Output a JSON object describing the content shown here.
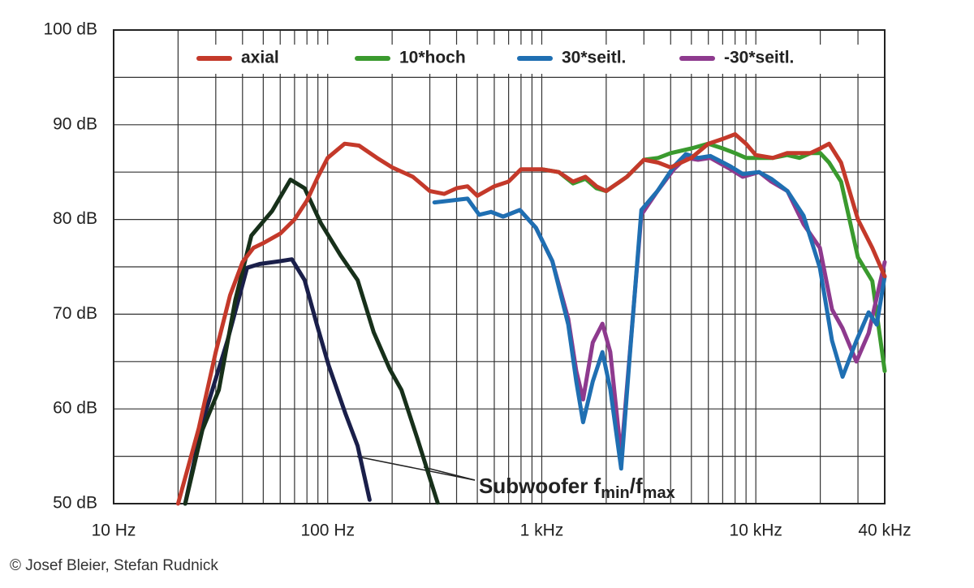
{
  "chart_data": {
    "type": "line",
    "xscale": "log",
    "xlim": [
      10,
      40000
    ],
    "ylim": [
      50,
      100
    ],
    "xticks": [
      {
        "value": 10,
        "label": "10 Hz"
      },
      {
        "value": 100,
        "label": "100 Hz"
      },
      {
        "value": 1000,
        "label": "1 kHz"
      },
      {
        "value": 10000,
        "label": "10 kHz"
      },
      {
        "value": 40000,
        "label": "40 kHz"
      }
    ],
    "yticks": [
      {
        "value": 50,
        "label": "50 dB"
      },
      {
        "value": 60,
        "label": "60 dB"
      },
      {
        "value": 70,
        "label": "70 dB"
      },
      {
        "value": 80,
        "label": "80 dB"
      },
      {
        "value": 90,
        "label": "90 dB"
      },
      {
        "value": 100,
        "label": "100 dB"
      }
    ],
    "x_minor_grid": [
      20,
      30,
      40,
      50,
      60,
      70,
      80,
      90,
      200,
      300,
      400,
      500,
      600,
      700,
      800,
      900,
      2000,
      3000,
      4000,
      5000,
      6000,
      7000,
      8000,
      9000,
      20000,
      30000
    ],
    "y_minor_grid": [
      55,
      65,
      75,
      85,
      95
    ],
    "grid": true,
    "series": [
      {
        "name": "axial",
        "color": "#c4392a",
        "x": [
          20,
          25,
          30,
          35,
          40,
          45,
          50,
          60,
          70,
          80,
          90,
          100,
          120,
          140,
          170,
          200,
          250,
          300,
          350,
          400,
          450,
          500,
          600,
          700,
          800,
          1000,
          1200,
          1400,
          1600,
          1800,
          2000,
          2500,
          3000,
          3500,
          4000,
          5000,
          6000,
          7000,
          8000,
          9000,
          10000,
          12000,
          14000,
          16000,
          18000,
          20000,
          22000,
          25000,
          30000,
          35000,
          40000
        ],
        "values": [
          50,
          58,
          66,
          72,
          75.5,
          77,
          77.5,
          78.5,
          80,
          82,
          84.5,
          86.5,
          88,
          87.8,
          86.5,
          85.5,
          84.5,
          83,
          82.7,
          83.3,
          83.5,
          82.5,
          83.5,
          84,
          85.3,
          85.3,
          85,
          84,
          84.5,
          83.5,
          83,
          84.5,
          86.3,
          86,
          85.5,
          86.5,
          88,
          88.5,
          89,
          88,
          86.8,
          86.5,
          87,
          87,
          87,
          87.5,
          88,
          86,
          80,
          77,
          74
        ]
      },
      {
        "name": "10*hoch",
        "color": "#3a9a2e",
        "x": [
          1000,
          1200,
          1400,
          1600,
          1800,
          2000,
          2500,
          3000,
          3500,
          4000,
          5000,
          6000,
          7000,
          8000,
          9000,
          10000,
          12000,
          14000,
          16000,
          18000,
          20000,
          22000,
          25000,
          30000,
          35000,
          40000
        ],
        "values": [
          85.3,
          85,
          83.8,
          84.3,
          83.3,
          83,
          84.5,
          86.3,
          86.5,
          87,
          87.5,
          88,
          87.5,
          87,
          86.5,
          86.5,
          86.5,
          86.8,
          86.5,
          87,
          87,
          86,
          84,
          76,
          73.5,
          64
        ]
      },
      {
        "name": "30*seitl.",
        "color": "#1f6fb2",
        "x": [
          315,
          450,
          510,
          580,
          660,
          790,
          940,
          1120,
          1330,
          1450,
          1560,
          1730,
          1920,
          2090,
          2350,
          2560,
          2920,
          3470,
          4140,
          4710,
          5370,
          6130,
          7620,
          8690,
          10350,
          11800,
          14060,
          16710,
          19910,
          22700,
          25420,
          29500,
          33650,
          36730,
          40000
        ],
        "values": [
          81.8,
          82.2,
          80.5,
          80.8,
          80.3,
          81,
          79.1,
          75.6,
          68.9,
          62.9,
          58.6,
          62.9,
          66,
          62.1,
          53.7,
          64.7,
          81,
          83,
          85.6,
          86.9,
          86.5,
          86.7,
          85.6,
          84.8,
          85,
          84.3,
          83,
          80.4,
          74.9,
          67.2,
          63.4,
          67.2,
          70.2,
          68.9,
          74
        ]
      },
      {
        "name": "-30*seitl.",
        "color": "#8e3a8e",
        "x": [
          580,
          660,
          790,
          940,
          1120,
          1330,
          1450,
          1560,
          1730,
          1920,
          2090,
          2350,
          2560,
          2920,
          3470,
          4140,
          4710,
          5370,
          6130,
          7620,
          8690,
          10350,
          11800,
          14060,
          16710,
          19910,
          22700,
          25420,
          29500,
          33650,
          40000
        ],
        "values": [
          80.8,
          80.3,
          81,
          79.1,
          75.6,
          69.5,
          64,
          61,
          67,
          69,
          66,
          55,
          65,
          80.5,
          83,
          85.3,
          86.5,
          86.3,
          86.5,
          85.3,
          84.5,
          85,
          84,
          83,
          79.5,
          77,
          70.5,
          68.5,
          65,
          68,
          75.5
        ]
      },
      {
        "color": "#1a1f4a",
        "x": [
          21.6,
          26,
          34,
          42,
          48,
          60,
          68,
          78,
          89,
          101,
          121,
          138,
          157
        ],
        "values": [
          50,
          58.6,
          67.2,
          74.9,
          75.3,
          75.6,
          75.8,
          73.6,
          68.9,
          64.6,
          59.5,
          56.1,
          50.4
        ]
      },
      {
        "color": "#17301a",
        "x": [
          21.6,
          26,
          31,
          37,
          44,
          55,
          67,
          78,
          93,
          115,
          138,
          164,
          195,
          221,
          262,
          326
        ],
        "values": [
          50,
          57.8,
          62,
          71.5,
          78.3,
          80.9,
          84.2,
          83.3,
          79.6,
          76.2,
          73.6,
          68.1,
          64.2,
          62,
          56.9,
          50.1
        ]
      }
    ],
    "annotation": [
      "Subwoofer f",
      "min",
      "/f",
      "max"
    ],
    "credit": "© Josef Bleier, Stefan Rudnick"
  }
}
